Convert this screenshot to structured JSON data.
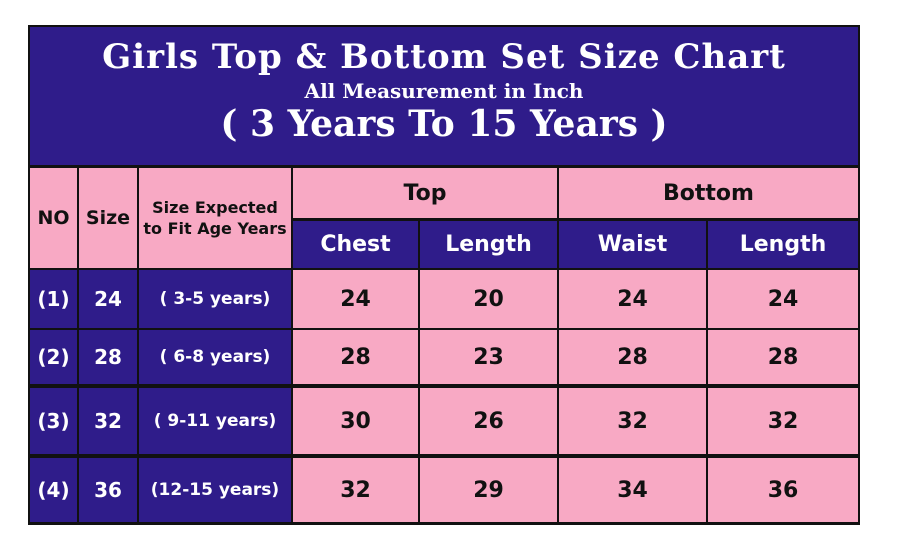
{
  "title": "Girls Top & Bottom Set Size Chart",
  "subtitle": "All Measurement in Inch",
  "range": "( 3 Years To 15 Years )",
  "headers": {
    "no": "NO",
    "size": "Size",
    "expected": "Size Expected to Fit Age Years",
    "top": "Top",
    "bottom": "Bottom",
    "chest": "Chest",
    "top_length": "Length",
    "waist": "Waist",
    "bottom_length": "Length"
  },
  "rows": [
    {
      "no": "(1)",
      "size": "24",
      "age": "( 3-5 years)",
      "chest": "24",
      "top_length": "20",
      "waist": "24",
      "bottom_length": "24"
    },
    {
      "no": "(2)",
      "size": "28",
      "age": "( 6-8 years)",
      "chest": "28",
      "top_length": "23",
      "waist": "28",
      "bottom_length": "28"
    },
    {
      "no": "(3)",
      "size": "32",
      "age": "( 9-11 years)",
      "chest": "30",
      "top_length": "26",
      "waist": "32",
      "bottom_length": "32"
    },
    {
      "no": "(4)",
      "size": "36",
      "age": "(12-15 years)",
      "chest": "32",
      "top_length": "29",
      "waist": "34",
      "bottom_length": "36"
    }
  ],
  "colors": {
    "navy": "#2f1c8a",
    "pink": "#f8a9c4"
  }
}
